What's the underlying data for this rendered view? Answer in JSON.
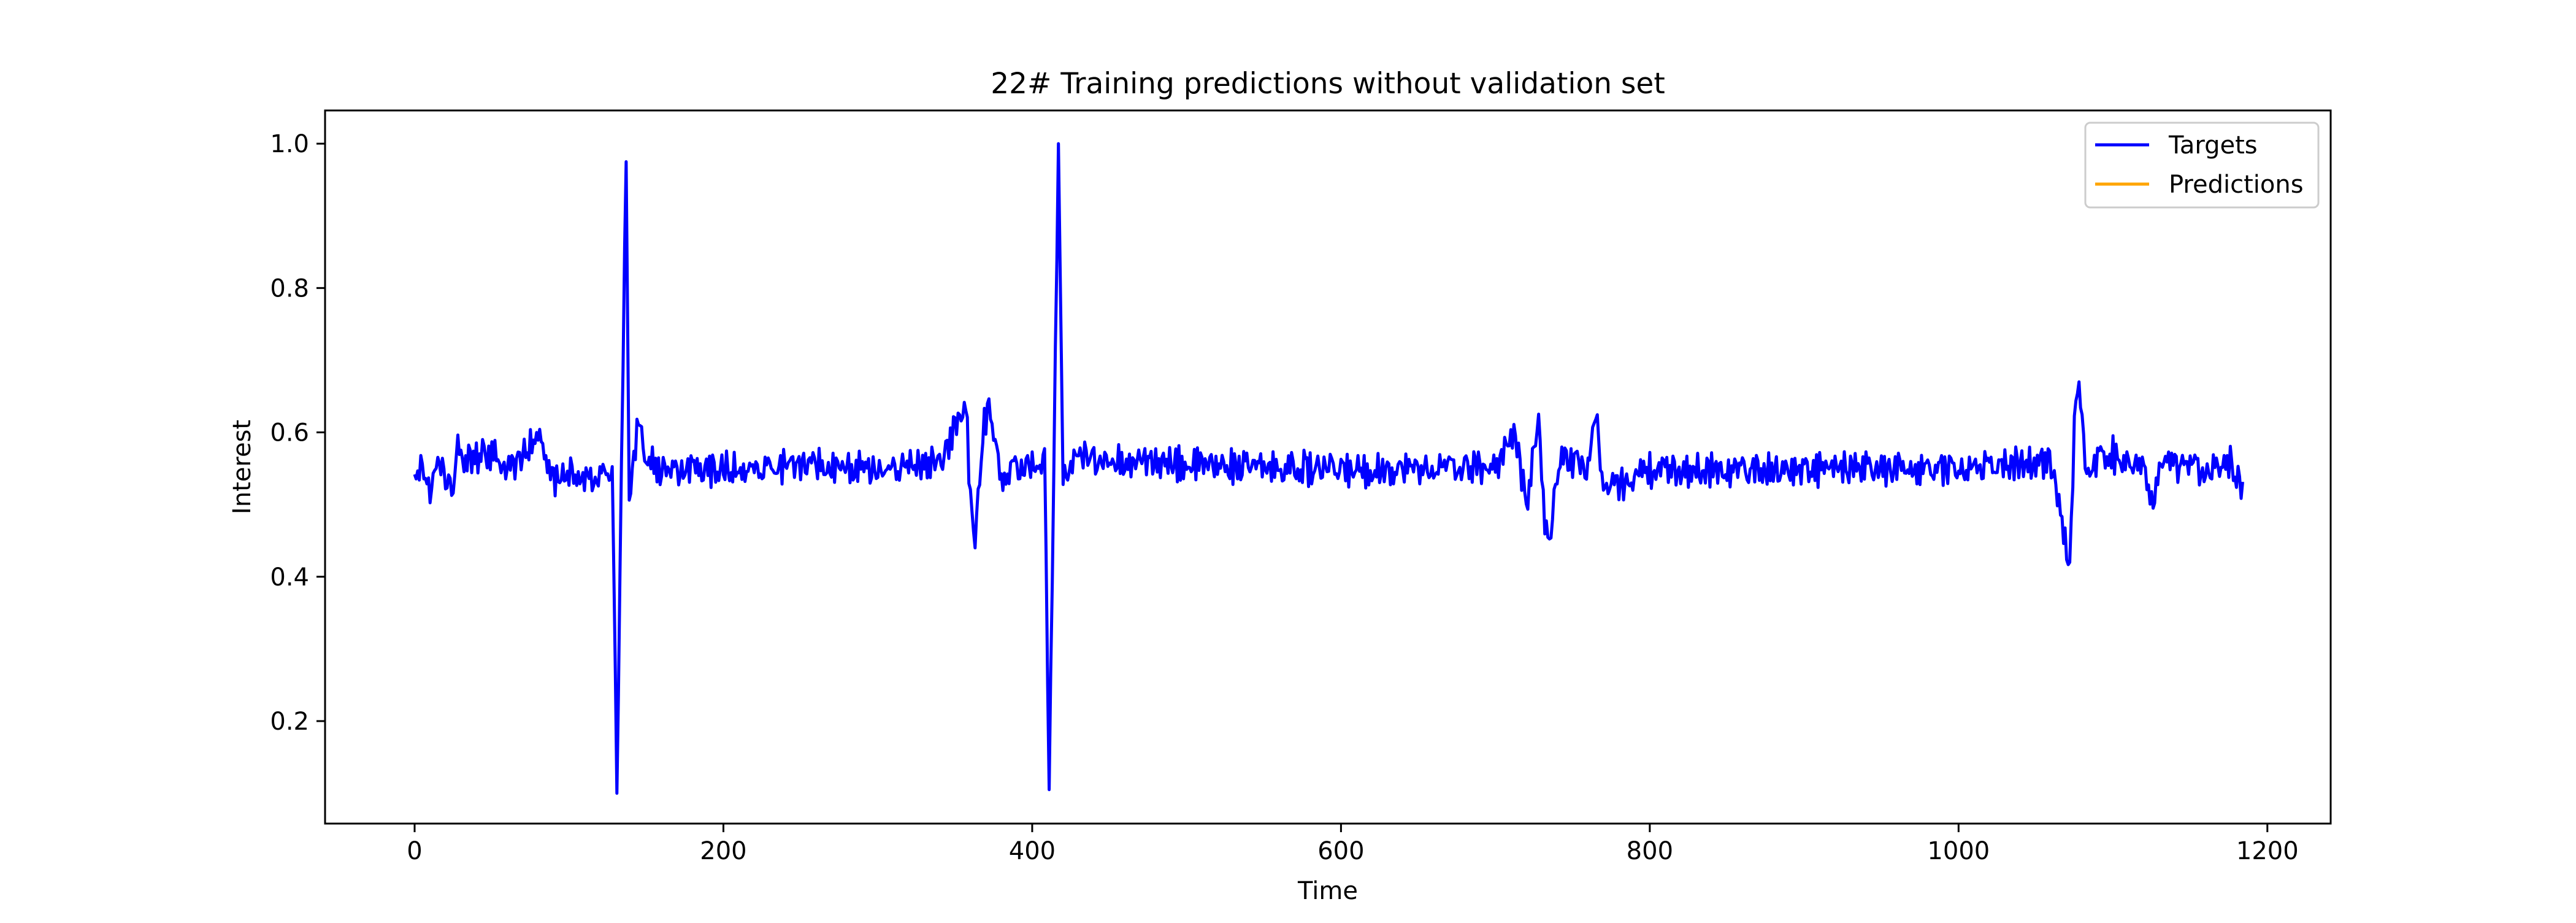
{
  "chart_data": {
    "type": "line",
    "title": "22# Training predictions without validation set",
    "xlabel": "Time",
    "ylabel": "Interest",
    "xlim": [
      -58,
      1241
    ],
    "ylim": [
      0.058,
      1.046
    ],
    "xticks": [
      0,
      200,
      400,
      600,
      800,
      1000,
      1200
    ],
    "xtick_labels": [
      "0",
      "200",
      "400",
      "600",
      "800",
      "1000",
      "1200"
    ],
    "yticks": [
      0.2,
      0.4,
      0.6,
      0.8,
      1.0
    ],
    "ytick_labels": [
      "0.2",
      "0.4",
      "0.6",
      "0.8",
      "1.0"
    ],
    "grid": false,
    "legend_position": "upper right",
    "n_points": 1185,
    "series": [
      {
        "name": "Targets",
        "color": "#0000ff",
        "baseline": 0.548,
        "noise_amplitude": 0.022,
        "anchors": [
          [
            0,
            0.55
          ],
          [
            5,
            0.55
          ],
          [
            10,
            0.525
          ],
          [
            15,
            0.558
          ],
          [
            20,
            0.535
          ],
          [
            25,
            0.52
          ],
          [
            28,
            0.595
          ],
          [
            32,
            0.56
          ],
          [
            50,
            0.572
          ],
          [
            60,
            0.545
          ],
          [
            72,
            0.575
          ],
          [
            80,
            0.6
          ],
          [
            90,
            0.535
          ],
          [
            100,
            0.545
          ],
          [
            110,
            0.53
          ],
          [
            120,
            0.545
          ],
          [
            128,
            0.552
          ],
          [
            131,
            0.1
          ],
          [
            134,
            0.57
          ],
          [
            137,
            0.975
          ],
          [
            139,
            0.49
          ],
          [
            144,
            0.61
          ],
          [
            150,
            0.57
          ],
          [
            160,
            0.545
          ],
          [
            200,
            0.55
          ],
          [
            260,
            0.555
          ],
          [
            300,
            0.55
          ],
          [
            340,
            0.555
          ],
          [
            355,
            0.63
          ],
          [
            357,
            0.65
          ],
          [
            360,
            0.5
          ],
          [
            363,
            0.44
          ],
          [
            368,
            0.6
          ],
          [
            372,
            0.64
          ],
          [
            380,
            0.54
          ],
          [
            395,
            0.555
          ],
          [
            405,
            0.55
          ],
          [
            408,
            0.57
          ],
          [
            411,
            0.105
          ],
          [
            414,
            0.555
          ],
          [
            417,
            1.0
          ],
          [
            420,
            0.53
          ],
          [
            430,
            0.565
          ],
          [
            500,
            0.555
          ],
          [
            600,
            0.548
          ],
          [
            700,
            0.552
          ],
          [
            712,
            0.6
          ],
          [
            720,
            0.5
          ],
          [
            728,
            0.615
          ],
          [
            732,
            0.47
          ],
          [
            736,
            0.465
          ],
          [
            742,
            0.57
          ],
          [
            760,
            0.55
          ],
          [
            765,
            0.63
          ],
          [
            770,
            0.52
          ],
          [
            800,
            0.548
          ],
          [
            900,
            0.548
          ],
          [
            1000,
            0.55
          ],
          [
            1060,
            0.56
          ],
          [
            1070,
            0.44
          ],
          [
            1072,
            0.42
          ],
          [
            1076,
            0.66
          ],
          [
            1078,
            0.67
          ],
          [
            1082,
            0.555
          ],
          [
            1100,
            0.57
          ],
          [
            1120,
            0.55
          ],
          [
            1126,
            0.485
          ],
          [
            1130,
            0.555
          ],
          [
            1160,
            0.55
          ],
          [
            1175,
            0.56
          ],
          [
            1184,
            0.515
          ]
        ]
      },
      {
        "name": "Predictions",
        "color": "#ffa500",
        "values": []
      }
    ]
  }
}
